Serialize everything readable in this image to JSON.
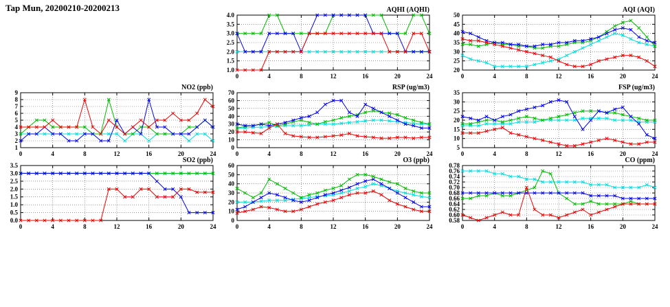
{
  "page_title": "Tap Mun, 20200210-20200213",
  "series_colors": {
    "cyan": "#00dddd",
    "green": "#00bb00",
    "blue": "#0000ee",
    "red": "#ee0000"
  },
  "chart_data": {
    "type": "line",
    "x_label": "hour",
    "x": [
      0,
      1,
      2,
      3,
      4,
      5,
      6,
      7,
      8,
      9,
      10,
      11,
      12,
      13,
      14,
      15,
      16,
      17,
      18,
      19,
      20,
      21,
      22,
      23,
      24
    ],
    "x_ticks": [
      0,
      4,
      8,
      12,
      16,
      20,
      24
    ],
    "xlim": [
      0,
      24
    ],
    "grid": "dotted",
    "legend": "none",
    "charts": [
      {
        "id": "aqhi",
        "title": "AQHI (AQHI)",
        "ylim": [
          1,
          4
        ],
        "ytick_step": 0.5,
        "ydecimals": 1,
        "series": [
          {
            "color": "cyan",
            "values": [
              2,
              2,
              2,
              2,
              2,
              2,
              2,
              2,
              2,
              2,
              2,
              2,
              2,
              2,
              2,
              2,
              2,
              2,
              2,
              2,
              2,
              2,
              2,
              2,
              2
            ]
          },
          {
            "color": "green",
            "values": [
              3,
              3,
              3,
              3,
              4,
              4,
              3,
              3,
              3,
              3,
              3,
              3,
              4,
              4,
              4,
              4,
              4,
              4,
              4,
              3,
              3,
              3,
              4,
              4,
              3
            ]
          },
          {
            "color": "blue",
            "values": [
              3,
              2,
              2,
              2,
              3,
              3,
              3,
              3,
              2,
              3,
              4,
              4,
              4,
              4,
              4,
              4,
              4,
              3,
              3,
              3,
              3,
              2,
              2,
              2,
              2
            ]
          },
          {
            "color": "red",
            "values": [
              1,
              1,
              1,
              1,
              2,
              2,
              2,
              2,
              2,
              3,
              3,
              3,
              3,
              3,
              3,
              3,
              3,
              3,
              3,
              2,
              2,
              2,
              3,
              3,
              2
            ]
          }
        ]
      },
      {
        "id": "aqi",
        "title": "AQI (AQI)",
        "ylim": [
          20,
          50
        ],
        "ytick_step": 5,
        "ydecimals": 0,
        "series": [
          {
            "color": "cyan",
            "values": [
              28,
              26,
              25,
              24,
              22,
              22,
              22,
              22,
              22,
              23,
              24,
              25,
              26,
              28,
              30,
              32,
              34,
              36,
              38,
              40,
              39,
              37,
              35,
              34,
              33
            ]
          },
          {
            "color": "green",
            "values": [
              34,
              34,
              33,
              34,
              35,
              34,
              34,
              33,
              33,
              32,
              32,
              33,
              33,
              34,
              35,
              35,
              36,
              38,
              41,
              44,
              46,
              47,
              43,
              38,
              33
            ]
          },
          {
            "color": "blue",
            "values": [
              41,
              40,
              38,
              36,
              35,
              35,
              34,
              34,
              33,
              33,
              34,
              34,
              35,
              35,
              36,
              36,
              37,
              38,
              40,
              42,
              43,
              42,
              38,
              36,
              35
            ]
          },
          {
            "color": "red",
            "values": [
              37,
              36,
              36,
              35,
              34,
              33,
              32,
              31,
              30,
              29,
              28,
              27,
              25,
              23,
              22,
              22,
              23,
              25,
              26,
              27,
              28,
              28,
              27,
              25,
              22
            ]
          }
        ]
      },
      {
        "id": "no2",
        "title": "NO2 (ppb)",
        "ylim": [
          1,
          9
        ],
        "ytick_step": 1,
        "ydecimals": 0,
        "series": [
          {
            "color": "cyan",
            "values": [
              3,
              3,
              3,
              3,
              3,
              3,
              3,
              3,
              3,
              3,
              3,
              3,
              3,
              2,
              3,
              3,
              2,
              3,
              3,
              3,
              3,
              2,
              3,
              3,
              2
            ]
          },
          {
            "color": "green",
            "values": [
              3,
              4,
              5,
              5,
              4,
              4,
              4,
              4,
              4,
              3,
              3,
              8,
              4,
              3,
              3,
              4,
              4,
              3,
              3,
              3,
              3,
              4,
              4,
              5,
              4
            ]
          },
          {
            "color": "blue",
            "values": [
              2,
              3,
              3,
              4,
              3,
              3,
              2,
              2,
              3,
              3,
              2,
              2,
              5,
              3,
              4,
              3,
              8,
              4,
              4,
              3,
              3,
              3,
              4,
              5,
              4
            ]
          },
          {
            "color": "red",
            "values": [
              4,
              4,
              4,
              4,
              5,
              4,
              4,
              4,
              8,
              4,
              3,
              5,
              4,
              3,
              4,
              5,
              4,
              5,
              5,
              6,
              5,
              5,
              6,
              8,
              7
            ]
          }
        ]
      },
      {
        "id": "rsp",
        "title": "RSP (ug/m3)",
        "ylim": [
          0,
          70
        ],
        "ytick_step": 10,
        "ydecimals": 0,
        "series": [
          {
            "color": "cyan",
            "values": [
              25,
              25,
              26,
              26,
              27,
              27,
              28,
              28,
              28,
              29,
              30,
              30,
              30,
              31,
              32,
              33,
              34,
              35,
              35,
              34,
              33,
              32,
              31,
              30,
              30
            ]
          },
          {
            "color": "green",
            "values": [
              25,
              27,
              28,
              30,
              32,
              28,
              30,
              33,
              35,
              32,
              30,
              33,
              35,
              38,
              40,
              42,
              45,
              47,
              45,
              44,
              42,
              38,
              35,
              32,
              30
            ]
          },
          {
            "color": "blue",
            "values": [
              30,
              28,
              28,
              30,
              28,
              30,
              32,
              35,
              38,
              40,
              45,
              55,
              60,
              60,
              45,
              40,
              55,
              50,
              45,
              40,
              35,
              30,
              28,
              25,
              25
            ]
          },
          {
            "color": "red",
            "values": [
              20,
              20,
              19,
              18,
              25,
              30,
              18,
              15,
              14,
              13,
              13,
              14,
              15,
              16,
              18,
              15,
              14,
              13,
              12,
              12,
              13,
              13,
              12,
              13,
              13
            ]
          }
        ]
      },
      {
        "id": "fsp",
        "title": "FSP (ug/m3)",
        "ylim": [
          5,
          35
        ],
        "ytick_step": 5,
        "ydecimals": 0,
        "series": [
          {
            "color": "cyan",
            "values": [
              17,
              17,
              17,
              18,
              18,
              18,
              18,
              19,
              19,
              19,
              20,
              20,
              20,
              20,
              20,
              21,
              21,
              21,
              21,
              20,
              20,
              20,
              19,
              19,
              19
            ]
          },
          {
            "color": "green",
            "values": [
              18,
              18,
              19,
              20,
              20,
              19,
              20,
              21,
              22,
              21,
              20,
              21,
              22,
              23,
              24,
              25,
              25,
              25,
              24,
              24,
              23,
              22,
              21,
              20,
              20
            ]
          },
          {
            "color": "blue",
            "values": [
              22,
              21,
              20,
              22,
              20,
              22,
              23,
              25,
              26,
              27,
              28,
              30,
              31,
              30,
              22,
              15,
              20,
              25,
              24,
              26,
              27,
              22,
              18,
              12,
              10
            ]
          },
          {
            "color": "red",
            "values": [
              13,
              13,
              13,
              14,
              15,
              16,
              13,
              12,
              11,
              10,
              9,
              8,
              7,
              6,
              6,
              7,
              8,
              9,
              10,
              9,
              8,
              7,
              7,
              8,
              8
            ]
          }
        ]
      },
      {
        "id": "so2",
        "title": "SO2 (ppb)",
        "ylim": [
          0,
          3.5
        ],
        "ytick_step": 0.5,
        "ydecimals": 1,
        "series": [
          {
            "color": "cyan",
            "values": [
              3,
              3,
              3,
              3,
              3,
              3,
              3,
              3,
              3,
              3,
              3,
              3,
              3,
              3,
              3,
              3,
              3,
              3,
              3,
              3,
              3,
              3,
              3,
              3,
              3
            ]
          },
          {
            "color": "green",
            "values": [
              3,
              3,
              3,
              3,
              3,
              3,
              3,
              3,
              3,
              3,
              3,
              3,
              3,
              3,
              3,
              3,
              3,
              3,
              3,
              3,
              3,
              3,
              3,
              3,
              3
            ]
          },
          {
            "color": "blue",
            "values": [
              3,
              3,
              3,
              3,
              3,
              3,
              3,
              3,
              3,
              3,
              3,
              3,
              3,
              3,
              3,
              3,
              3,
              2.5,
              2,
              2,
              1.5,
              0.5,
              0.5,
              0.5,
              0.5
            ]
          },
          {
            "color": "red",
            "values": [
              0,
              0,
              0,
              0,
              0,
              0,
              0,
              0,
              0,
              0,
              0,
              2,
              2,
              1.5,
              1.5,
              2,
              2,
              1.5,
              1.5,
              1.5,
              2,
              2,
              1.8,
              1.8,
              1.8
            ]
          }
        ]
      },
      {
        "id": "o3",
        "title": "O3 (ppb)",
        "ylim": [
          0,
          60
        ],
        "ytick_step": 10,
        "ydecimals": 0,
        "series": [
          {
            "color": "cyan",
            "values": [
              20,
              20,
              20,
              21,
              22,
              22,
              22,
              23,
              24,
              25,
              26,
              27,
              28,
              30,
              32,
              35,
              37,
              40,
              38,
              35,
              32,
              30,
              28,
              26,
              25
            ]
          },
          {
            "color": "green",
            "values": [
              35,
              30,
              25,
              30,
              45,
              40,
              35,
              30,
              25,
              28,
              30,
              33,
              35,
              38,
              45,
              50,
              50,
              48,
              45,
              42,
              40,
              35,
              32,
              30,
              30
            ]
          },
          {
            "color": "blue",
            "values": [
              12,
              15,
              20,
              25,
              30,
              28,
              25,
              22,
              20,
              22,
              25,
              28,
              30,
              33,
              36,
              40,
              43,
              45,
              40,
              35,
              30,
              25,
              20,
              15,
              15
            ]
          },
          {
            "color": "red",
            "values": [
              8,
              10,
              12,
              15,
              14,
              12,
              10,
              10,
              12,
              15,
              18,
              20,
              22,
              25,
              28,
              30,
              30,
              32,
              28,
              22,
              18,
              15,
              12,
              10,
              10
            ]
          }
        ]
      },
      {
        "id": "co",
        "title": "CO (ppm)",
        "ylim": [
          0.58,
          0.78
        ],
        "ytick_step": 0.02,
        "ydecimals": 2,
        "series": [
          {
            "color": "cyan",
            "values": [
              0.76,
              0.76,
              0.76,
              0.76,
              0.75,
              0.75,
              0.74,
              0.74,
              0.73,
              0.73,
              0.72,
              0.72,
              0.72,
              0.72,
              0.72,
              0.72,
              0.71,
              0.71,
              0.71,
              0.7,
              0.7,
              0.7,
              0.7,
              0.71,
              0.7
            ]
          },
          {
            "color": "green",
            "values": [
              0.66,
              0.66,
              0.67,
              0.67,
              0.68,
              0.67,
              0.67,
              0.68,
              0.69,
              0.7,
              0.76,
              0.75,
              0.68,
              0.66,
              0.64,
              0.64,
              0.65,
              0.64,
              0.64,
              0.64,
              0.64,
              0.65,
              0.64,
              0.64,
              0.64
            ]
          },
          {
            "color": "blue",
            "values": [
              0.68,
              0.68,
              0.68,
              0.68,
              0.68,
              0.68,
              0.68,
              0.68,
              0.68,
              0.68,
              0.68,
              0.68,
              0.68,
              0.68,
              0.68,
              0.68,
              0.67,
              0.67,
              0.67,
              0.67,
              0.66,
              0.66,
              0.66,
              0.66,
              0.66
            ]
          },
          {
            "color": "red",
            "values": [
              0.6,
              0.59,
              0.58,
              0.59,
              0.6,
              0.61,
              0.6,
              0.6,
              0.7,
              0.62,
              0.6,
              0.6,
              0.59,
              0.6,
              0.61,
              0.62,
              0.6,
              0.61,
              0.62,
              0.63,
              0.64,
              0.64,
              0.64,
              0.64,
              0.64
            ]
          }
        ]
      }
    ]
  }
}
